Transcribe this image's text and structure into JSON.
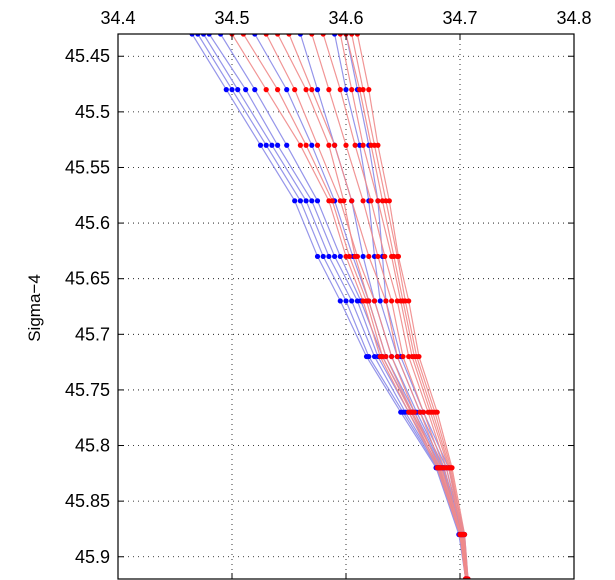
{
  "chart_data": {
    "type": "line",
    "title": "",
    "xlabel": "",
    "ylabel": "Sigma−4",
    "xlim": [
      34.4,
      34.8
    ],
    "ylim": [
      45.43,
      45.92
    ],
    "y_reversed": true,
    "x_axis_position": "top",
    "grid": "dotted",
    "legend": "none",
    "x_ticks": [
      34.4,
      34.5,
      34.6,
      34.7,
      34.8
    ],
    "x_tick_labels": [
      "34.4",
      "34.5",
      "34.6",
      "34.7",
      "34.8"
    ],
    "y_ticks": [
      45.45,
      45.5,
      45.55,
      45.6,
      45.65,
      45.7,
      45.75,
      45.8,
      45.85,
      45.9
    ],
    "y_tick_labels": [
      "45.45",
      "45.5",
      "45.55",
      "45.6",
      "45.65",
      "45.7",
      "45.75",
      "45.8",
      "45.85",
      "45.9"
    ],
    "colors": {
      "red": "#ff0000",
      "blue": "#0000ff",
      "red_line": "#f08a8a",
      "blue_line": "#8a8ae8"
    },
    "series": [
      {
        "color": "blue",
        "x": [
          34.47,
          34.5,
          34.53,
          34.56,
          34.58,
          34.6,
          34.62,
          34.65,
          34.68,
          34.7,
          34.705
        ],
        "y": [
          45.43,
          45.48,
          45.53,
          45.58,
          45.63,
          45.67,
          45.72,
          45.77,
          45.82,
          45.88,
          45.92
        ]
      },
      {
        "color": "blue",
        "x": [
          34.475,
          34.505,
          34.535,
          34.565,
          34.585,
          34.605,
          34.625,
          34.652,
          34.681,
          34.701,
          34.705
        ],
        "y": [
          45.43,
          45.48,
          45.53,
          45.58,
          45.63,
          45.67,
          45.72,
          45.77,
          45.82,
          45.88,
          45.92
        ]
      },
      {
        "color": "blue",
        "x": [
          34.465,
          34.495,
          34.525,
          34.555,
          34.575,
          34.595,
          34.618,
          34.648,
          34.679,
          34.699,
          34.705
        ],
        "y": [
          45.43,
          45.48,
          45.53,
          45.58,
          45.63,
          45.67,
          45.72,
          45.77,
          45.82,
          45.88,
          45.92
        ]
      },
      {
        "color": "blue",
        "x": [
          34.48,
          34.512,
          34.54,
          34.57,
          34.59,
          34.61,
          34.628,
          34.655,
          34.682,
          34.701,
          34.705
        ],
        "y": [
          45.43,
          45.48,
          45.53,
          45.58,
          45.63,
          45.67,
          45.72,
          45.77,
          45.82,
          45.88,
          45.92
        ]
      },
      {
        "color": "blue",
        "x": [
          34.49,
          34.52,
          34.548,
          34.575,
          34.595,
          34.613,
          34.632,
          34.658,
          34.684,
          34.702,
          34.706
        ],
        "y": [
          45.43,
          45.48,
          45.53,
          45.58,
          45.63,
          45.67,
          45.72,
          45.77,
          45.82,
          45.88,
          45.92
        ]
      },
      {
        "color": "blue",
        "x": [
          34.52,
          34.548,
          34.57,
          34.59,
          34.606,
          34.62,
          34.635,
          34.66,
          34.685,
          34.702,
          34.706
        ],
        "y": [
          45.43,
          45.48,
          45.53,
          45.58,
          45.63,
          45.67,
          45.72,
          45.77,
          45.82,
          45.88,
          45.92
        ]
      },
      {
        "color": "blue",
        "x": [
          34.56,
          34.575,
          34.59,
          34.605,
          34.615,
          34.625,
          34.64,
          34.662,
          34.686,
          34.703,
          34.706
        ],
        "y": [
          45.43,
          45.48,
          45.53,
          45.58,
          45.63,
          45.67,
          45.72,
          45.77,
          45.82,
          45.88,
          45.92
        ]
      },
      {
        "color": "blue",
        "x": [
          34.59,
          34.6,
          34.612,
          34.62,
          34.625,
          34.63,
          34.645,
          34.665,
          34.688,
          34.703,
          34.706
        ],
        "y": [
          45.43,
          45.48,
          45.53,
          45.58,
          45.63,
          45.67,
          45.72,
          45.77,
          45.82,
          45.88,
          45.92
        ]
      },
      {
        "color": "blue",
        "x": [
          34.6,
          34.61,
          34.62,
          34.628,
          34.632,
          34.635,
          34.648,
          34.668,
          34.69,
          34.704,
          34.707
        ],
        "y": [
          45.43,
          45.48,
          45.53,
          45.58,
          45.63,
          45.67,
          45.72,
          45.77,
          45.82,
          45.88,
          45.92
        ]
      },
      {
        "color": "red",
        "x": [
          34.5,
          34.53,
          34.56,
          34.585,
          34.6,
          34.615,
          34.63,
          34.655,
          34.68,
          34.7,
          34.705
        ],
        "y": [
          45.43,
          45.48,
          45.53,
          45.58,
          45.63,
          45.67,
          45.72,
          45.77,
          45.82,
          45.88,
          45.92
        ]
      },
      {
        "color": "red",
        "x": [
          34.53,
          34.555,
          34.575,
          34.595,
          34.61,
          34.625,
          34.64,
          34.66,
          34.682,
          34.7,
          34.705
        ],
        "y": [
          45.43,
          45.48,
          45.53,
          45.58,
          45.63,
          45.67,
          45.72,
          45.77,
          45.82,
          45.88,
          45.92
        ]
      },
      {
        "color": "red",
        "x": [
          34.55,
          34.57,
          34.59,
          34.605,
          34.62,
          34.635,
          34.645,
          34.665,
          34.684,
          34.701,
          34.705
        ],
        "y": [
          45.43,
          45.48,
          45.53,
          45.58,
          45.63,
          45.67,
          45.72,
          45.77,
          45.82,
          45.88,
          45.92
        ]
      },
      {
        "color": "red",
        "x": [
          34.57,
          34.585,
          34.6,
          34.615,
          34.628,
          34.64,
          34.65,
          34.668,
          34.686,
          34.701,
          34.705
        ],
        "y": [
          45.43,
          45.48,
          45.53,
          45.58,
          45.63,
          45.67,
          45.72,
          45.77,
          45.82,
          45.88,
          45.92
        ]
      },
      {
        "color": "red",
        "x": [
          34.58,
          34.595,
          34.608,
          34.622,
          34.634,
          34.645,
          34.655,
          34.672,
          34.688,
          34.702,
          34.706
        ],
        "y": [
          45.43,
          45.48,
          45.53,
          45.58,
          45.63,
          45.67,
          45.72,
          45.77,
          45.82,
          45.88,
          45.92
        ]
      },
      {
        "color": "red",
        "x": [
          34.595,
          34.605,
          34.615,
          34.628,
          34.64,
          34.648,
          34.658,
          34.674,
          34.69,
          34.702,
          34.706
        ],
        "y": [
          45.43,
          45.48,
          45.53,
          45.58,
          45.63,
          45.67,
          45.72,
          45.77,
          45.82,
          45.88,
          45.92
        ]
      },
      {
        "color": "red",
        "x": [
          34.6,
          34.612,
          34.622,
          34.632,
          34.642,
          34.65,
          34.66,
          34.676,
          34.691,
          34.703,
          34.706
        ],
        "y": [
          45.43,
          45.48,
          45.53,
          45.58,
          45.63,
          45.67,
          45.72,
          45.77,
          45.82,
          45.88,
          45.92
        ]
      },
      {
        "color": "red",
        "x": [
          34.605,
          34.615,
          34.625,
          34.635,
          34.645,
          34.652,
          34.662,
          34.678,
          34.692,
          34.703,
          34.707
        ],
        "y": [
          45.43,
          45.48,
          45.53,
          45.58,
          45.63,
          45.67,
          45.72,
          45.77,
          45.82,
          45.88,
          45.92
        ]
      },
      {
        "color": "red",
        "x": [
          34.61,
          34.62,
          34.628,
          34.638,
          34.646,
          34.655,
          34.664,
          34.68,
          34.693,
          34.704,
          34.707
        ],
        "y": [
          45.43,
          45.48,
          45.53,
          45.58,
          45.63,
          45.67,
          45.72,
          45.77,
          45.82,
          45.88,
          45.92
        ]
      },
      {
        "color": "red",
        "x": [
          34.54,
          34.565,
          34.585,
          34.598,
          34.608,
          34.62,
          34.635,
          34.658,
          34.683,
          34.701,
          34.705
        ],
        "y": [
          45.43,
          45.48,
          45.53,
          45.58,
          45.63,
          45.67,
          45.72,
          45.77,
          45.82,
          45.88,
          45.92
        ]
      },
      {
        "color": "red",
        "x": [
          34.51,
          34.54,
          34.565,
          34.588,
          34.603,
          34.618,
          34.632,
          34.657,
          34.681,
          34.7,
          34.705
        ],
        "y": [
          45.43,
          45.48,
          45.53,
          45.58,
          45.63,
          45.67,
          45.72,
          45.77,
          45.82,
          45.88,
          45.92
        ]
      }
    ]
  }
}
